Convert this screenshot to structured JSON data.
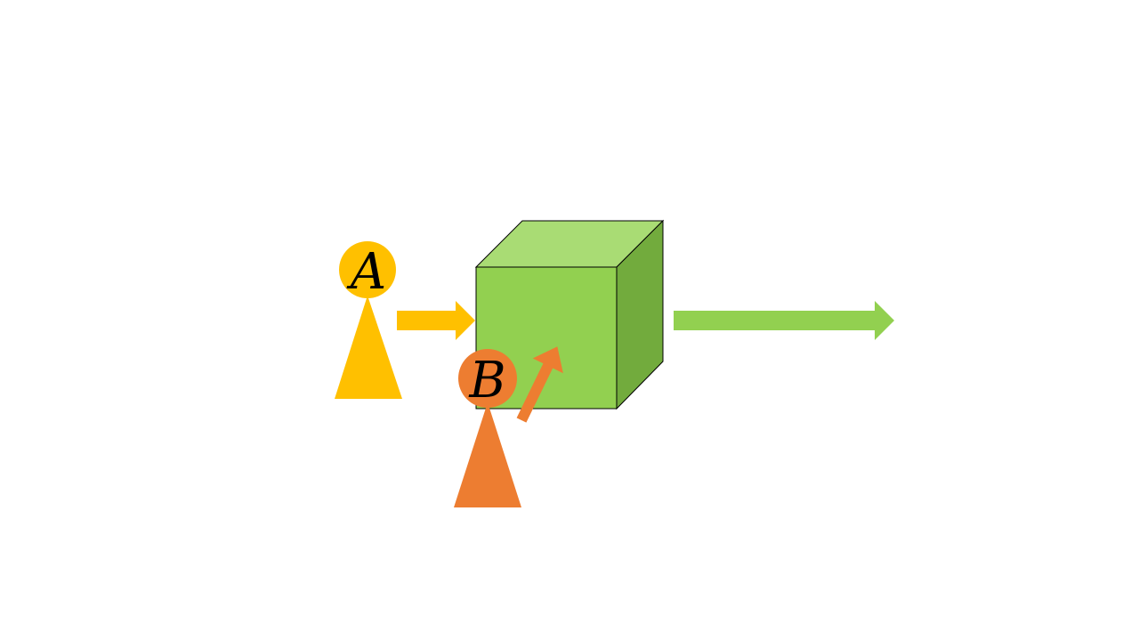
{
  "diagram": {
    "background": "#ffffff",
    "colors": {
      "person_a": "#ffc000",
      "person_b": "#ed7d31",
      "cube_front": "#92d050",
      "cube_top": "#a9dc74",
      "cube_side": "#72ab3d",
      "output_arrow": "#92d050",
      "outline": "#000000"
    },
    "person_a": {
      "label": "A",
      "icon": "person-pawn-icon"
    },
    "person_b": {
      "label": "B",
      "icon": "person-pawn-icon"
    },
    "cube": {
      "icon": "cube-icon"
    },
    "arrows": {
      "a_to_cube": "arrow-right-icon",
      "b_to_cube": "arrow-diagonal-icon",
      "cube_output": "arrow-right-icon"
    }
  }
}
